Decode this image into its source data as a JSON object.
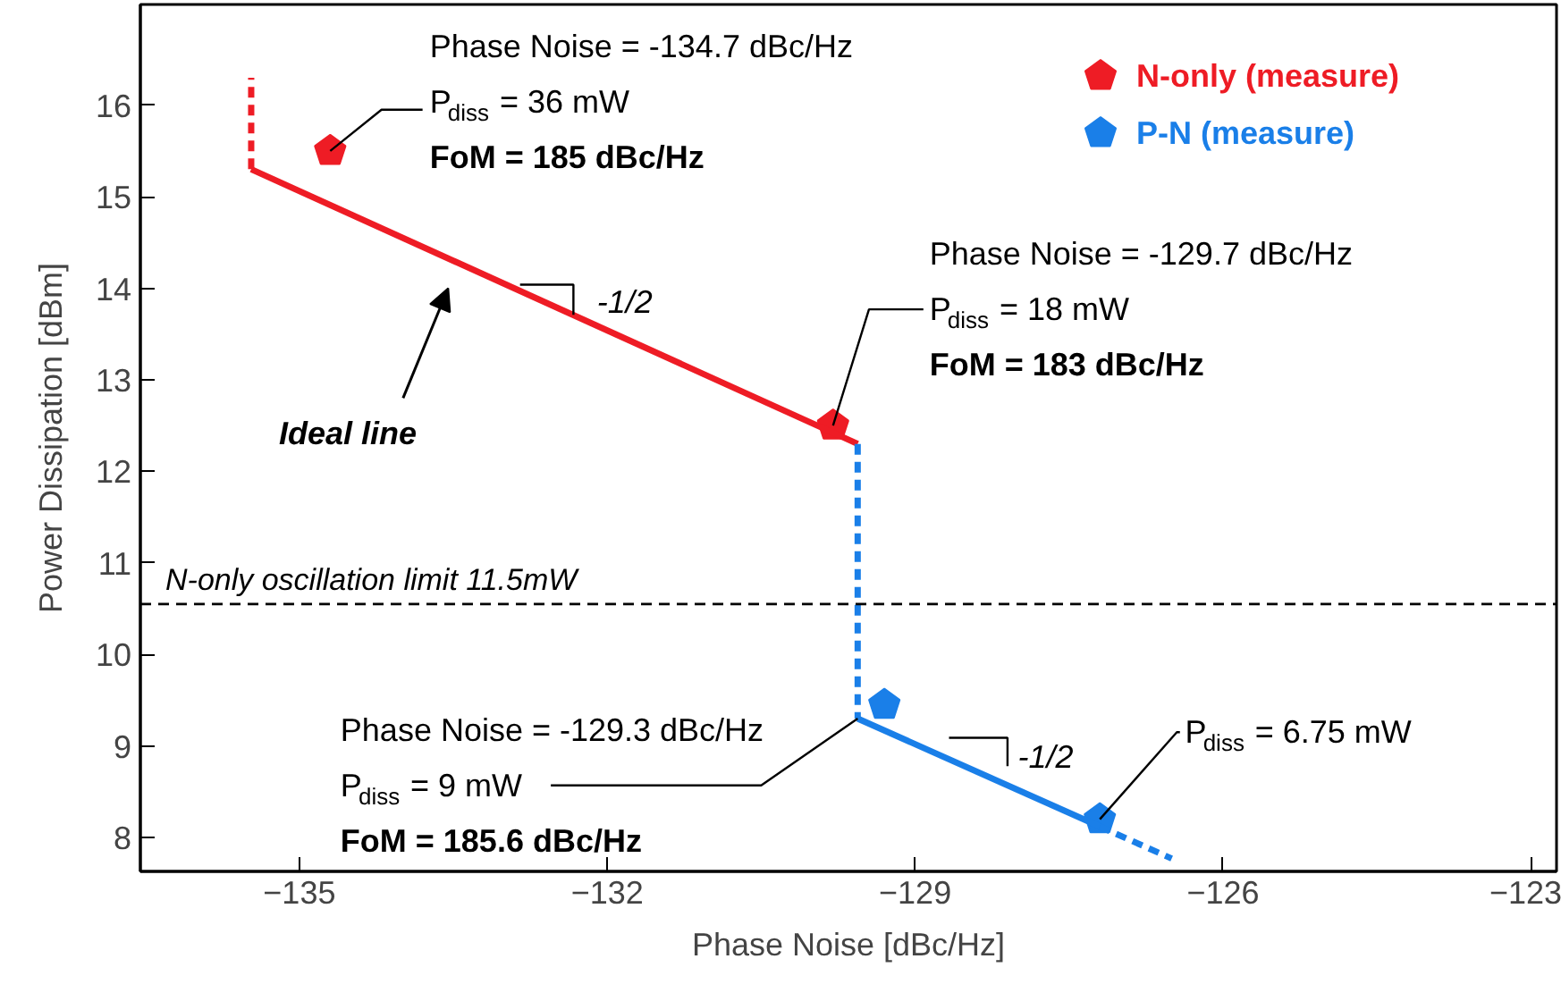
{
  "chart_data": {
    "type": "scatter",
    "xlabel": "Phase Noise [dBc/Hz]",
    "ylabel": "Power Dissipation [dBm]",
    "xlim": [
      -136.55,
      -122.75
    ],
    "ylim": [
      7.63,
      17.1
    ],
    "xticks": [
      -135,
      -132,
      -129,
      -126,
      -123
    ],
    "yticks": [
      8,
      9,
      10,
      11,
      12,
      13,
      14,
      15,
      16
    ],
    "grid": false,
    "legend": "top right",
    "series": [
      {
        "name": "N-only (measure)",
        "color": "#ee1c25",
        "x": [
          -134.7,
          -129.8
        ],
        "values": [
          15.5,
          12.5
        ]
      },
      {
        "name": "P-N (measure)",
        "color": "#1a7fe8",
        "x": [
          -129.3,
          -127.2
        ],
        "values": [
          9.45,
          8.2
        ]
      },
      {
        "type": "line",
        "color": "#ee1c25",
        "line_style": "solid",
        "x": [
          -135.47,
          -129.56
        ],
        "values": [
          15.3,
          12.3
        ]
      },
      {
        "type": "line",
        "color": "#ee1c25",
        "line_style": "dashed",
        "x": [
          -135.47,
          -135.47
        ],
        "values": [
          15.3,
          16.3
        ]
      },
      {
        "type": "line",
        "color": "#1a7fe8",
        "line_style": "dashed",
        "x": [
          -129.56,
          -129.56
        ],
        "values": [
          12.3,
          9.3
        ]
      },
      {
        "type": "line",
        "color": "#1a7fe8",
        "line_style": "solid",
        "x": [
          -129.56,
          -127.2
        ],
        "values": [
          9.3,
          8.12
        ]
      },
      {
        "type": "line",
        "color": "#1a7fe8",
        "line_style": "dashed",
        "x": [
          -127.2,
          -126.5
        ],
        "values": [
          8.12,
          7.77
        ]
      }
    ],
    "ref_lines": [
      {
        "axis": "y",
        "value": 10.55,
        "label": "N-only oscillation limit  11.5mW",
        "color": "#000000",
        "line_style": "dashed"
      }
    ],
    "annotations": [
      {
        "text": "Phase Noise = -134.7 dBc/Hz\nP$_{diss}$ = 36 mW\nFoM = 185 dBc/Hz",
        "x": -134.7,
        "y": 15.5
      },
      {
        "text": "Phase Noise = -129.7 dBc/Hz\nP$_{diss}$ = 18 mW\nFoM = 183 dBc/Hz",
        "x": -129.8,
        "y": 12.5
      },
      {
        "text": "Phase Noise = -129.3 dBc/Hz\nP$_{diss}$ = 9 mW\nFoM = 185.6 dBc/Hz",
        "x": -129.56,
        "y": 9.3
      },
      {
        "text": "P$_{diss}$ = 6.75 mW",
        "x": -127.2,
        "y": 8.2
      },
      {
        "text": "-1/2",
        "x": -132.33,
        "y": 13.69
      },
      {
        "text": "-1/2",
        "x": -128.1,
        "y": 8.57
      },
      "Ideal line"
    ]
  }
}
